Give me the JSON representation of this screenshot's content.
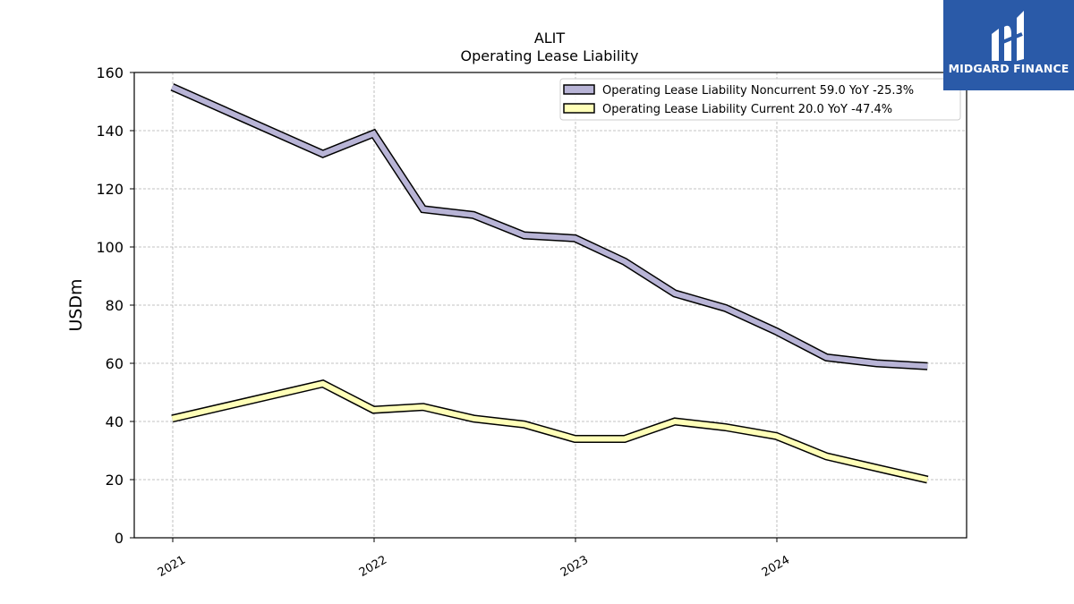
{
  "chart_data": {
    "type": "line",
    "title": "ALIT",
    "subtitle": "Operating Lease Liability",
    "ylabel": "USDm",
    "xlabel": "",
    "ylim": [
      0,
      160
    ],
    "yticks": [
      0,
      20,
      40,
      60,
      80,
      100,
      120,
      140,
      160
    ],
    "xticks": [
      "2021",
      "2022",
      "2023",
      "2024"
    ],
    "grid": true,
    "legend_position": "top-right",
    "x": [
      "2020-12-31",
      "2021-09-30",
      "2021-12-31",
      "2022-03-31",
      "2022-06-30",
      "2022-09-30",
      "2022-12-31",
      "2023-03-31",
      "2023-06-30",
      "2023-09-30",
      "2023-12-31",
      "2024-03-31",
      "2024-06-30",
      "2024-09-30"
    ],
    "series": [
      {
        "name": "Operating Lease Liability Noncurrent",
        "legend_label": "Operating Lease Liability Noncurrent  59.0 YoY -25.3%",
        "color": "#b8b4d6",
        "values": [
          155,
          132,
          139,
          113,
          111,
          104,
          103,
          95,
          84,
          79,
          71,
          62,
          60,
          59
        ]
      },
      {
        "name": "Operating Lease Liability Current",
        "legend_label": "Operating Lease Liability Current  20.0 YoY -47.4%",
        "color": "#ffffb8",
        "values": [
          41,
          53,
          44,
          45,
          41,
          39,
          34,
          34,
          40,
          38,
          35,
          28,
          24,
          20
        ]
      }
    ]
  },
  "logo": {
    "text": "MIDGARD FINANCE",
    "background": "#2a5aa8"
  }
}
